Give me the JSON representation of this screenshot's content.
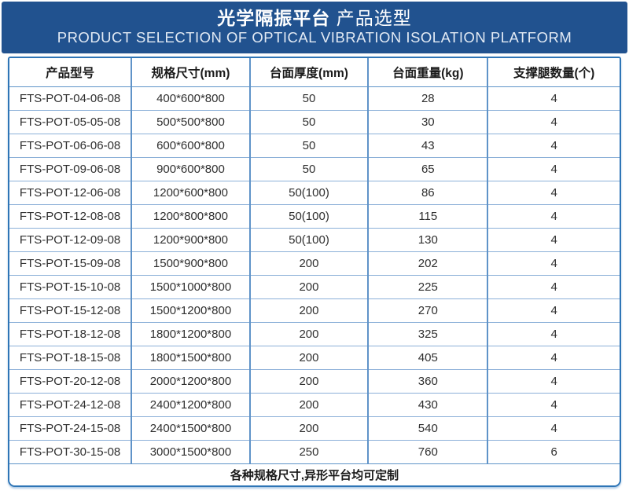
{
  "header": {
    "title_zh_bold": "光学隔振平台",
    "title_zh_rest": "产品选型",
    "title_en": "PRODUCT SELECTION OF OPTICAL VIBRATION ISOLATION PLATFORM"
  },
  "table": {
    "columns": [
      "产品型号",
      "规格尺寸(mm)",
      "台面厚度(mm)",
      "台面重量(kg)",
      "支撑腿数量(个)"
    ],
    "rows": [
      [
        "FTS-POT-04-06-08",
        "400*600*800",
        "50",
        "28",
        "4"
      ],
      [
        "FTS-POT-05-05-08",
        "500*500*800",
        "50",
        "30",
        "4"
      ],
      [
        "FTS-POT-06-06-08",
        "600*600*800",
        "50",
        "43",
        "4"
      ],
      [
        "FTS-POT-09-06-08",
        "900*600*800",
        "50",
        "65",
        "4"
      ],
      [
        "FTS-POT-12-06-08",
        "1200*600*800",
        "50(100)",
        "86",
        "4"
      ],
      [
        "FTS-POT-12-08-08",
        "1200*800*800",
        "50(100)",
        "115",
        "4"
      ],
      [
        "FTS-POT-12-09-08",
        "1200*900*800",
        "50(100)",
        "130",
        "4"
      ],
      [
        "FTS-POT-15-09-08",
        "1500*900*800",
        "200",
        "202",
        "4"
      ],
      [
        "FTS-POT-15-10-08",
        "1500*1000*800",
        "200",
        "225",
        "4"
      ],
      [
        "FTS-POT-15-12-08",
        "1500*1200*800",
        "200",
        "270",
        "4"
      ],
      [
        "FTS-POT-18-12-08",
        "1800*1200*800",
        "200",
        "325",
        "4"
      ],
      [
        "FTS-POT-18-15-08",
        "1800*1500*800",
        "200",
        "405",
        "4"
      ],
      [
        "FTS-POT-20-12-08",
        "2000*1200*800",
        "200",
        "360",
        "4"
      ],
      [
        "FTS-POT-24-12-08",
        "2400*1200*800",
        "200",
        "430",
        "4"
      ],
      [
        "FTS-POT-24-15-08",
        "2400*1500*800",
        "200",
        "540",
        "4"
      ],
      [
        "FTS-POT-30-15-08",
        "3000*1500*800",
        "250",
        "760",
        "6"
      ]
    ],
    "footer_note": "各种规格尺寸,异形平台均可定制"
  },
  "colors": {
    "banner_bg": "#21528F",
    "outer_border": "#2e75b6",
    "grid_vertical": "#5f93c8",
    "grid_horizontal": "#8cb0d8",
    "text": "#2f2f2f"
  }
}
